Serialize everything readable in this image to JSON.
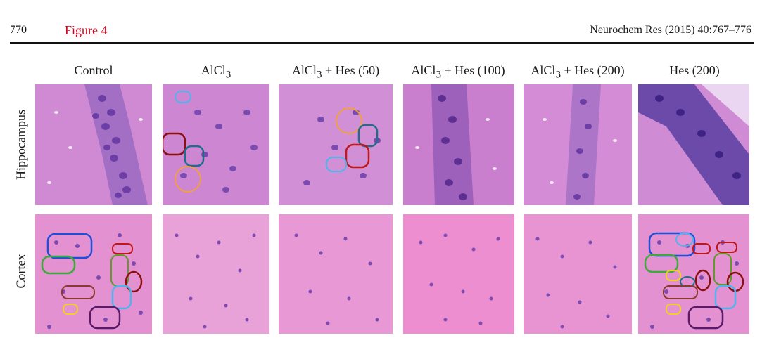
{
  "header": {
    "page_number": "770",
    "figure_label": "Figure 4",
    "journal_ref": "Neurochem Res (2015) 40:767–776"
  },
  "columns": [
    {
      "prefix": "Control",
      "sub": "",
      "suffix": ""
    },
    {
      "prefix": "AlCl",
      "sub": "3",
      "suffix": ""
    },
    {
      "prefix": "AlCl",
      "sub": "3",
      "suffix": " + Hes (50)"
    },
    {
      "prefix": "AlCl",
      "sub": "3",
      "suffix": " + Hes (100)"
    },
    {
      "prefix": "AlCl",
      "sub": "3",
      "suffix": " + Hes (200)"
    },
    {
      "prefix": "Hes (200)",
      "sub": "",
      "suffix": ""
    }
  ],
  "rows": [
    {
      "label": "Hippocampus"
    },
    {
      "label": "Cortex"
    }
  ],
  "colors": {
    "tissue_hippo": "#d48cd6",
    "tissue_cortex": "#e893d3",
    "nucleus": "#7c4ab0",
    "nucleus_dark": "#5a2f90",
    "annot_blue": "#1f4fd6",
    "annot_lightblue": "#4fb4ee",
    "annot_teal": "#1e6d8a",
    "annot_red": "#c01818",
    "annot_darkred": "#8a1010",
    "annot_green": "#3caa3c",
    "annot_olive": "#5f9a2a",
    "annot_orange": "#f0a040",
    "annot_yellow": "#f0d020",
    "annot_brown": "#8a3a2a",
    "annot_purple": "#5a1a6a"
  }
}
